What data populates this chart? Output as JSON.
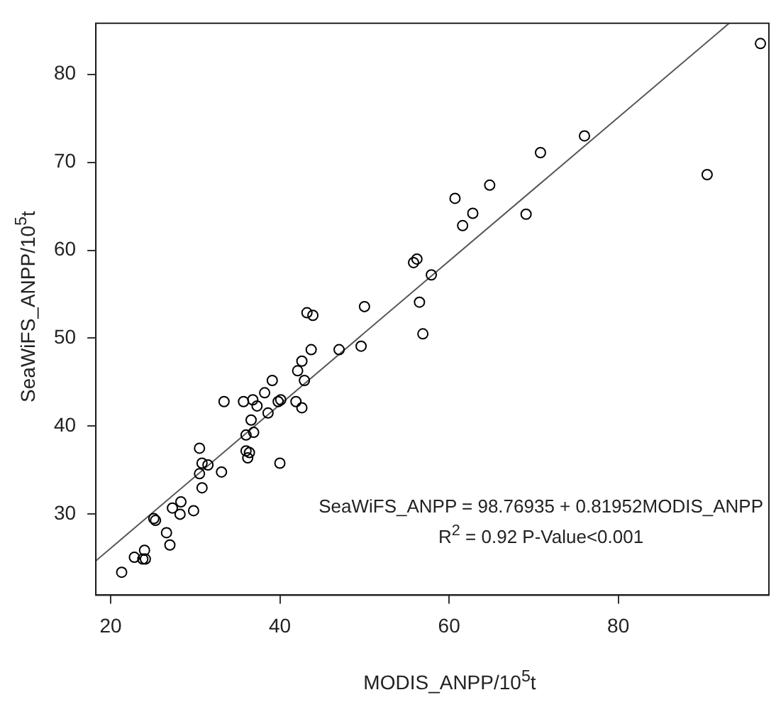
{
  "chart_data": {
    "type": "scatter",
    "xlabel": "MODIS_ANPP/10$^{5}$t",
    "ylabel": "SeaWiFS_ANPP/10$^{5}$t",
    "xlim": [
      18.25,
      97.8
    ],
    "ylim": [
      20.8,
      85.8
    ],
    "xticks": [
      20,
      40,
      60,
      80
    ],
    "yticks": [
      30,
      40,
      50,
      60,
      70,
      80
    ],
    "grid": false,
    "marker": "circle",
    "annotations": [
      "SeaWiFS_ANPP = 98.76935 + 0.81952MODIS_ANPP",
      "R$^{2}$ = 0.92 P-Value<0.001"
    ],
    "series": [
      {
        "color": "#000000",
        "x": [
          21.3,
          22.8,
          24.0,
          23.8,
          24.1,
          25.1,
          25.3,
          26.6,
          27.0,
          27.3,
          28.3,
          28.2,
          29.8,
          30.5,
          30.8,
          31.5,
          30.5,
          30.8,
          33.1,
          33.4,
          35.7,
          36.0,
          36.0,
          36.2,
          36.4,
          36.6,
          36.9,
          36.8,
          37.3,
          38.2,
          38.6,
          39.1,
          39.8,
          40.1,
          40.0,
          41.9,
          42.1,
          42.6,
          42.6,
          42.9,
          43.7,
          47.0,
          49.6,
          56.9,
          43.2,
          43.9,
          50.0,
          55.8,
          56.2,
          56.5,
          57.9,
          60.7,
          61.6,
          62.8,
          64.8,
          69.1,
          70.8,
          76.0,
          90.5,
          96.8
        ],
        "values": [
          23.4,
          25.1,
          25.9,
          24.9,
          24.9,
          29.5,
          29.3,
          27.9,
          26.5,
          30.7,
          31.4,
          30.0,
          30.4,
          37.5,
          35.8,
          35.6,
          34.6,
          33.0,
          34.8,
          42.8,
          42.8,
          39.0,
          37.2,
          36.4,
          37.0,
          40.7,
          39.3,
          43.0,
          42.3,
          43.8,
          41.5,
          45.2,
          42.8,
          43.0,
          35.8,
          42.8,
          46.3,
          47.4,
          42.1,
          45.2,
          48.7,
          48.7,
          49.1,
          50.5,
          52.9,
          52.6,
          53.6,
          58.6,
          59.0,
          54.1,
          57.2,
          65.9,
          62.8,
          64.2,
          67.4,
          64.1,
          71.1,
          73.0,
          68.6,
          83.5
        ]
      },
      {
        "type": "line",
        "color": "#555555",
        "marker": "none",
        "line_style": "solid",
        "x": [
          18.25,
          93.1
        ],
        "values": [
          24.7,
          85.8
        ]
      }
    ]
  }
}
